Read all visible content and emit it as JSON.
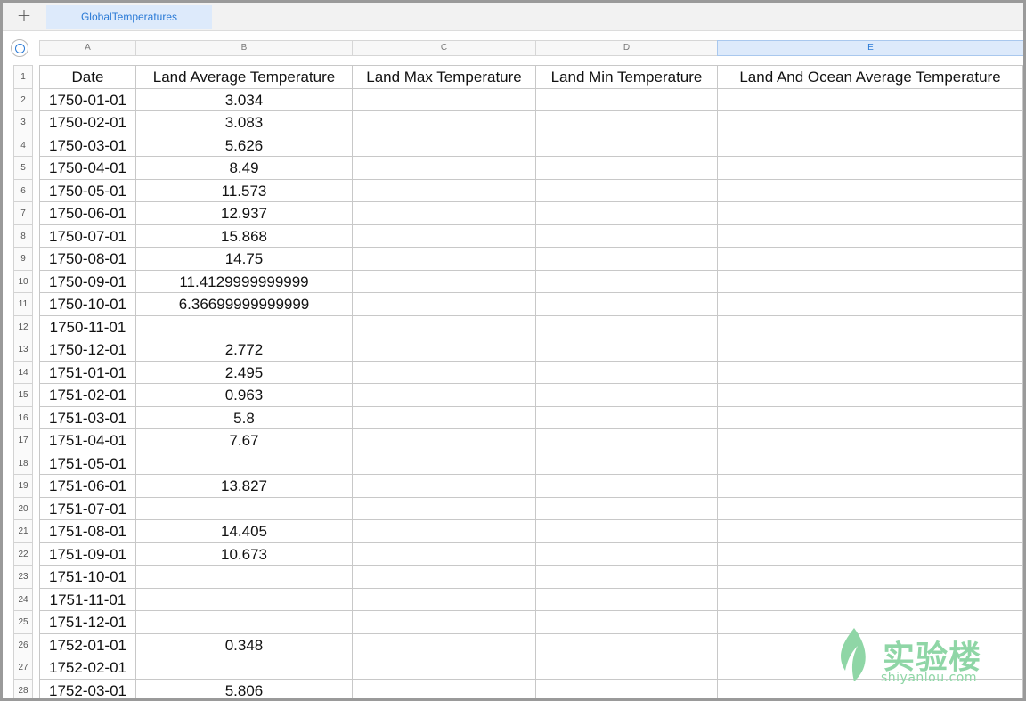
{
  "tabs": {
    "add_label": "+",
    "active": "GlobalTemperatures"
  },
  "columns": [
    "A",
    "B",
    "C",
    "D",
    "E"
  ],
  "row_numbers": [
    "1",
    "2",
    "3",
    "4",
    "5",
    "6",
    "7",
    "8",
    "9",
    "10",
    "11",
    "12",
    "13",
    "14",
    "15",
    "16",
    "17",
    "18",
    "19",
    "20",
    "21",
    "22",
    "23",
    "24",
    "25",
    "26",
    "27",
    "28"
  ],
  "header": [
    "Date",
    "Land Average Temperature",
    "Land Max Temperature",
    "Land Min Temperature",
    "Land And Ocean Average Temperature"
  ],
  "rows": [
    [
      "1750-01-01",
      "3.034",
      "",
      "",
      ""
    ],
    [
      "1750-02-01",
      "3.083",
      "",
      "",
      ""
    ],
    [
      "1750-03-01",
      "5.626",
      "",
      "",
      ""
    ],
    [
      "1750-04-01",
      "8.49",
      "",
      "",
      ""
    ],
    [
      "1750-05-01",
      "11.573",
      "",
      "",
      ""
    ],
    [
      "1750-06-01",
      "12.937",
      "",
      "",
      ""
    ],
    [
      "1750-07-01",
      "15.868",
      "",
      "",
      ""
    ],
    [
      "1750-08-01",
      "14.75",
      "",
      "",
      ""
    ],
    [
      "1750-09-01",
      "11.4129999999999",
      "",
      "",
      ""
    ],
    [
      "1750-10-01",
      "6.36699999999999",
      "",
      "",
      ""
    ],
    [
      "1750-11-01",
      "",
      "",
      "",
      ""
    ],
    [
      "1750-12-01",
      "2.772",
      "",
      "",
      ""
    ],
    [
      "1751-01-01",
      "2.495",
      "",
      "",
      ""
    ],
    [
      "1751-02-01",
      "0.963",
      "",
      "",
      ""
    ],
    [
      "1751-03-01",
      "5.8",
      "",
      "",
      ""
    ],
    [
      "1751-04-01",
      "7.67",
      "",
      "",
      ""
    ],
    [
      "1751-05-01",
      "",
      "",
      "",
      ""
    ],
    [
      "1751-06-01",
      "13.827",
      "",
      "",
      ""
    ],
    [
      "1751-07-01",
      "",
      "",
      "",
      ""
    ],
    [
      "1751-08-01",
      "14.405",
      "",
      "",
      ""
    ],
    [
      "1751-09-01",
      "10.673",
      "",
      "",
      ""
    ],
    [
      "1751-10-01",
      "",
      "",
      "",
      ""
    ],
    [
      "1751-11-01",
      "",
      "",
      "",
      ""
    ],
    [
      "1751-12-01",
      "",
      "",
      "",
      ""
    ],
    [
      "1752-01-01",
      "0.348",
      "",
      "",
      ""
    ],
    [
      "1752-02-01",
      "",
      "",
      "",
      ""
    ],
    [
      "1752-03-01",
      "5.806",
      "",
      "",
      ""
    ]
  ],
  "watermark": {
    "brand": "实验楼",
    "url": "shiyanlou.com"
  },
  "colors": {
    "accent": "#2a7ad6",
    "selected_bg": "#ddeafb",
    "watermark": "#8fd6a6"
  }
}
